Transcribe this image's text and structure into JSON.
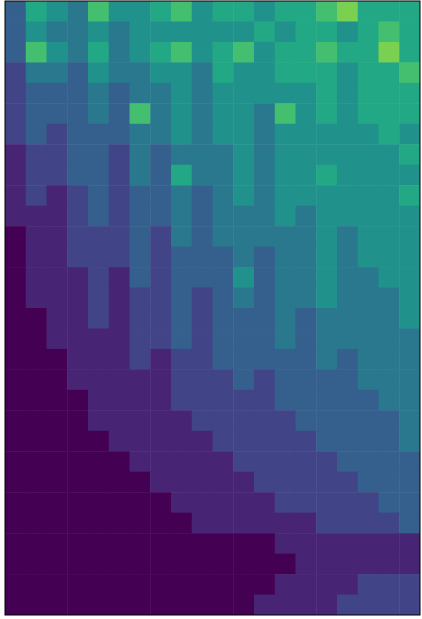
{
  "chart_data": {
    "type": "heatmap",
    "tick_labels": false,
    "zlim": [
      0,
      10
    ],
    "z": [
      [
        3,
        6,
        5,
        4,
        7,
        5,
        5,
        6,
        7,
        5,
        6,
        6,
        5,
        6,
        6,
        7,
        8,
        6,
        6,
        6
      ],
      [
        3,
        5,
        4,
        4,
        5,
        4,
        5,
        5,
        5,
        5,
        5,
        5,
        6,
        5,
        6,
        6,
        5,
        6,
        7,
        6
      ],
      [
        3,
        7,
        5,
        4,
        6,
        4,
        5,
        6,
        7,
        5,
        6,
        7,
        5,
        6,
        6,
        7,
        6,
        6,
        8,
        6
      ],
      [
        2,
        4,
        4,
        3,
        5,
        4,
        4,
        5,
        5,
        4,
        6,
        5,
        5,
        6,
        6,
        6,
        5,
        6,
        6,
        7
      ],
      [
        2,
        3,
        3,
        3,
        4,
        3,
        4,
        4,
        5,
        4,
        5,
        5,
        5,
        5,
        5,
        6,
        5,
        6,
        6,
        6
      ],
      [
        2,
        3,
        3,
        3,
        4,
        3,
        7,
        4,
        5,
        4,
        5,
        5,
        4,
        7,
        5,
        6,
        5,
        6,
        6,
        6
      ],
      [
        2,
        3,
        2,
        3,
        3,
        3,
        4,
        4,
        5,
        4,
        5,
        5,
        4,
        5,
        5,
        5,
        5,
        5,
        6,
        5
      ],
      [
        1,
        2,
        2,
        3,
        3,
        2,
        4,
        3,
        4,
        4,
        4,
        5,
        4,
        5,
        5,
        5,
        5,
        5,
        5,
        6
      ],
      [
        1,
        2,
        2,
        3,
        3,
        2,
        4,
        3,
        6,
        4,
        4,
        5,
        4,
        5,
        5,
        6,
        5,
        5,
        5,
        5
      ],
      [
        1,
        2,
        1,
        2,
        3,
        2,
        3,
        3,
        4,
        3,
        4,
        5,
        4,
        5,
        5,
        5,
        5,
        5,
        5,
        6
      ],
      [
        1,
        1,
        1,
        2,
        3,
        2,
        3,
        3,
        4,
        3,
        4,
        4,
        4,
        5,
        4,
        5,
        5,
        5,
        5,
        5
      ],
      [
        0,
        1,
        1,
        2,
        2,
        2,
        3,
        2,
        4,
        3,
        4,
        4,
        4,
        4,
        4,
        5,
        4,
        5,
        5,
        5
      ],
      [
        0,
        1,
        1,
        2,
        2,
        2,
        3,
        2,
        3,
        3,
        3,
        4,
        3,
        4,
        4,
        5,
        4,
        5,
        5,
        5
      ],
      [
        0,
        1,
        1,
        1,
        2,
        1,
        3,
        2,
        3,
        3,
        3,
        5,
        3,
        4,
        4,
        5,
        4,
        4,
        5,
        5
      ],
      [
        0,
        1,
        1,
        1,
        2,
        1,
        2,
        2,
        3,
        2,
        3,
        4,
        3,
        4,
        4,
        5,
        4,
        4,
        4,
        5
      ],
      [
        0,
        0,
        1,
        1,
        2,
        1,
        2,
        2,
        3,
        2,
        3,
        3,
        3,
        4,
        3,
        4,
        4,
        4,
        4,
        5
      ],
      [
        0,
        0,
        1,
        1,
        1,
        1,
        2,
        2,
        3,
        2,
        3,
        3,
        3,
        4,
        3,
        4,
        4,
        4,
        4,
        4
      ],
      [
        0,
        0,
        0,
        1,
        1,
        1,
        2,
        1,
        2,
        2,
        3,
        3,
        3,
        3,
        3,
        4,
        3,
        4,
        4,
        4
      ],
      [
        0,
        0,
        0,
        1,
        1,
        1,
        1,
        1,
        2,
        2,
        2,
        3,
        2,
        3,
        3,
        3,
        3,
        4,
        4,
        4
      ],
      [
        0,
        0,
        0,
        0,
        1,
        1,
        1,
        1,
        2,
        2,
        2,
        2,
        2,
        3,
        3,
        3,
        3,
        3,
        4,
        4
      ],
      [
        0,
        0,
        0,
        0,
        1,
        1,
        1,
        1,
        1,
        2,
        2,
        2,
        2,
        2,
        3,
        3,
        3,
        3,
        3,
        4
      ],
      [
        0,
        0,
        0,
        0,
        0,
        1,
        1,
        1,
        1,
        1,
        2,
        2,
        2,
        2,
        2,
        3,
        3,
        3,
        3,
        4
      ],
      [
        0,
        0,
        0,
        0,
        0,
        0,
        1,
        1,
        1,
        1,
        1,
        2,
        2,
        2,
        2,
        2,
        3,
        3,
        3,
        3
      ],
      [
        0,
        0,
        0,
        0,
        0,
        0,
        0,
        1,
        1,
        1,
        1,
        1,
        2,
        2,
        2,
        2,
        2,
        3,
        3,
        3
      ],
      [
        0,
        0,
        0,
        0,
        0,
        0,
        0,
        0,
        1,
        1,
        1,
        1,
        1,
        2,
        2,
        2,
        2,
        2,
        3,
        3
      ],
      [
        0,
        0,
        0,
        0,
        0,
        0,
        0,
        0,
        0,
        1,
        1,
        1,
        1,
        1,
        1,
        2,
        2,
        2,
        2,
        3
      ],
      [
        0,
        0,
        0,
        0,
        0,
        0,
        0,
        0,
        0,
        0,
        0,
        0,
        0,
        1,
        1,
        1,
        1,
        1,
        1,
        1
      ],
      [
        0,
        0,
        0,
        0,
        0,
        0,
        0,
        0,
        0,
        0,
        0,
        0,
        0,
        0,
        1,
        1,
        1,
        1,
        1,
        1
      ],
      [
        0,
        0,
        0,
        0,
        0,
        0,
        0,
        0,
        0,
        0,
        0,
        0,
        0,
        1,
        1,
        1,
        1,
        2,
        2,
        2
      ],
      [
        0,
        0,
        0,
        0,
        0,
        0,
        0,
        0,
        0,
        0,
        0,
        0,
        1,
        1,
        1,
        1,
        2,
        2,
        2,
        2
      ]
    ]
  }
}
